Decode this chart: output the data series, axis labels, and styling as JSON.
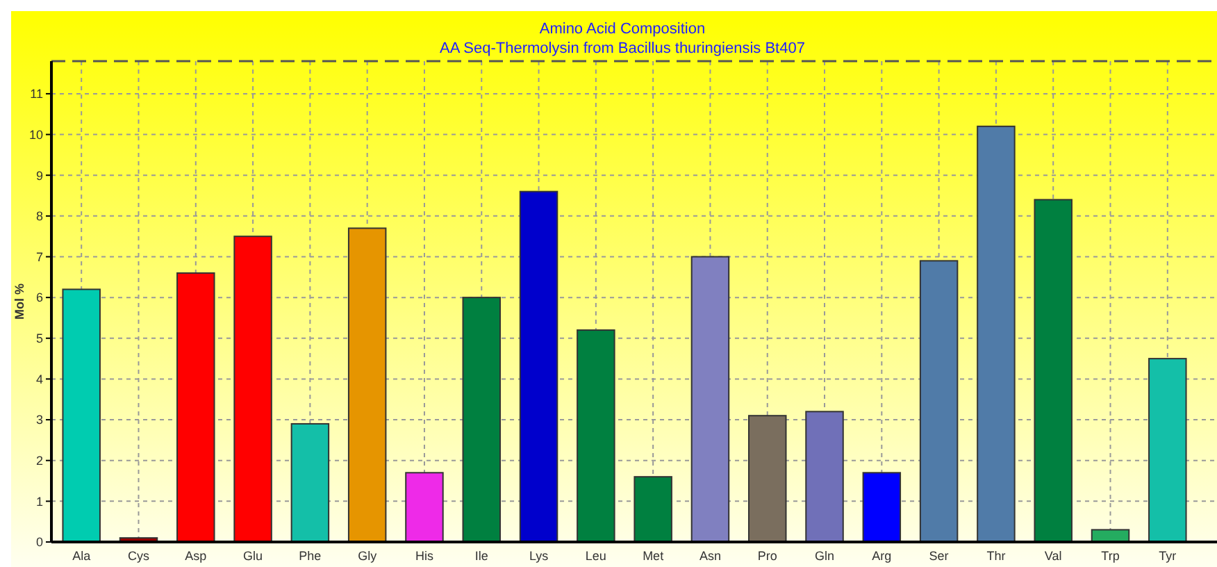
{
  "chart_data": {
    "type": "bar",
    "title": "Amino Acid Composition",
    "subtitle": "AA Seq-Thermolysin from Bacillus thuringiensis Bt407",
    "ylabel": "Mol %",
    "categories": [
      "Ala",
      "Cys",
      "Asp",
      "Glu",
      "Phe",
      "Gly",
      "His",
      "Ile",
      "Lys",
      "Leu",
      "Met",
      "Asn",
      "Pro",
      "Gln",
      "Arg",
      "Ser",
      "Thr",
      "Val",
      "Trp",
      "Tyr"
    ],
    "values": [
      6.2,
      0.1,
      6.6,
      7.5,
      2.9,
      7.7,
      1.7,
      6.0,
      8.6,
      5.2,
      1.6,
      7.0,
      3.1,
      3.2,
      1.7,
      6.9,
      10.2,
      8.4,
      0.3,
      4.5
    ],
    "colors": [
      "#00ccb0",
      "#990000",
      "#ff0000",
      "#ff0000",
      "#14bfa8",
      "#e69500",
      "#ee2ae8",
      "#008040",
      "#0000cc",
      "#008040",
      "#008040",
      "#8080c0",
      "#7a6e5e",
      "#7070b8",
      "#0000ff",
      "#507ba8",
      "#507ba8",
      "#008040",
      "#24ac60",
      "#14bfa8"
    ],
    "ylim": [
      0,
      11.8
    ],
    "yticks": [
      0,
      1,
      2,
      3,
      4,
      5,
      6,
      7,
      8,
      9,
      10,
      11
    ],
    "grid": true
  }
}
